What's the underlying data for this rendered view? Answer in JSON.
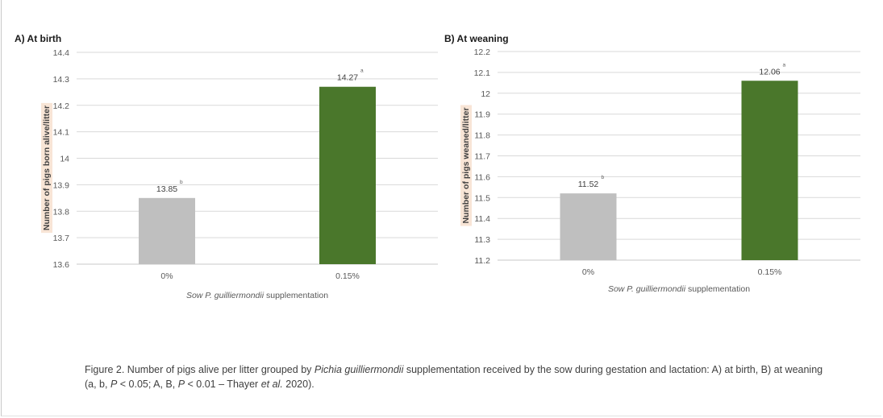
{
  "chart_data": [
    {
      "type": "bar",
      "title": "A) At birth",
      "categories": [
        "0%",
        "0.15%"
      ],
      "values": [
        13.85,
        14.27
      ],
      "value_labels": [
        "13.85",
        "14.27"
      ],
      "significance": [
        "b",
        "a"
      ],
      "colors": [
        "#bfbfbf",
        "#4a772b"
      ],
      "xlabel_italic": "Sow P. guilliermondii",
      "xlabel_rest": " supplementation",
      "ylabel": "Number of pigs born alive/litter",
      "ylim": [
        13.6,
        14.4
      ],
      "yticks": [
        13.6,
        13.7,
        13.8,
        13.9,
        14,
        14.1,
        14.2,
        14.3,
        14.4
      ],
      "ytick_labels": [
        "13.6",
        "13.7",
        "13.8",
        "13.9",
        "14",
        "14.1",
        "14.2",
        "14.3",
        "14.4"
      ],
      "grid": true
    },
    {
      "type": "bar",
      "title": "B) At weaning",
      "categories": [
        "0%",
        "0.15%"
      ],
      "values": [
        11.52,
        12.06
      ],
      "value_labels": [
        "11.52",
        "12.06"
      ],
      "significance": [
        "b",
        "a"
      ],
      "colors": [
        "#bfbfbf",
        "#4a772b"
      ],
      "xlabel_italic": "Sow P. guilliermondii",
      "xlabel_rest": " supplementation",
      "ylabel": "Number of pigs weaned/litter",
      "ylim": [
        11.2,
        12.2
      ],
      "yticks": [
        11.2,
        11.3,
        11.4,
        11.5,
        11.6,
        11.7,
        11.8,
        11.9,
        12,
        12.1,
        12.2
      ],
      "ytick_labels": [
        "11.2",
        "11.3",
        "11.4",
        "11.5",
        "11.6",
        "11.7",
        "11.8",
        "11.9",
        "12",
        "12.1",
        "12.2"
      ],
      "grid": true
    }
  ],
  "caption": {
    "p1": "Figure 2. Number of pigs alive per litter grouped by ",
    "p2": "Pichia guilliermondii",
    "p3": " supplementation received by the sow during gestation and lactation: A) at birth, B) at weaning (a, b, ",
    "p4": "P",
    "p5": " < 0.05; A, B, ",
    "p6": "P",
    "p7": " < 0.01 – Thayer ",
    "p8": "et al.",
    "p9": " 2020)."
  }
}
